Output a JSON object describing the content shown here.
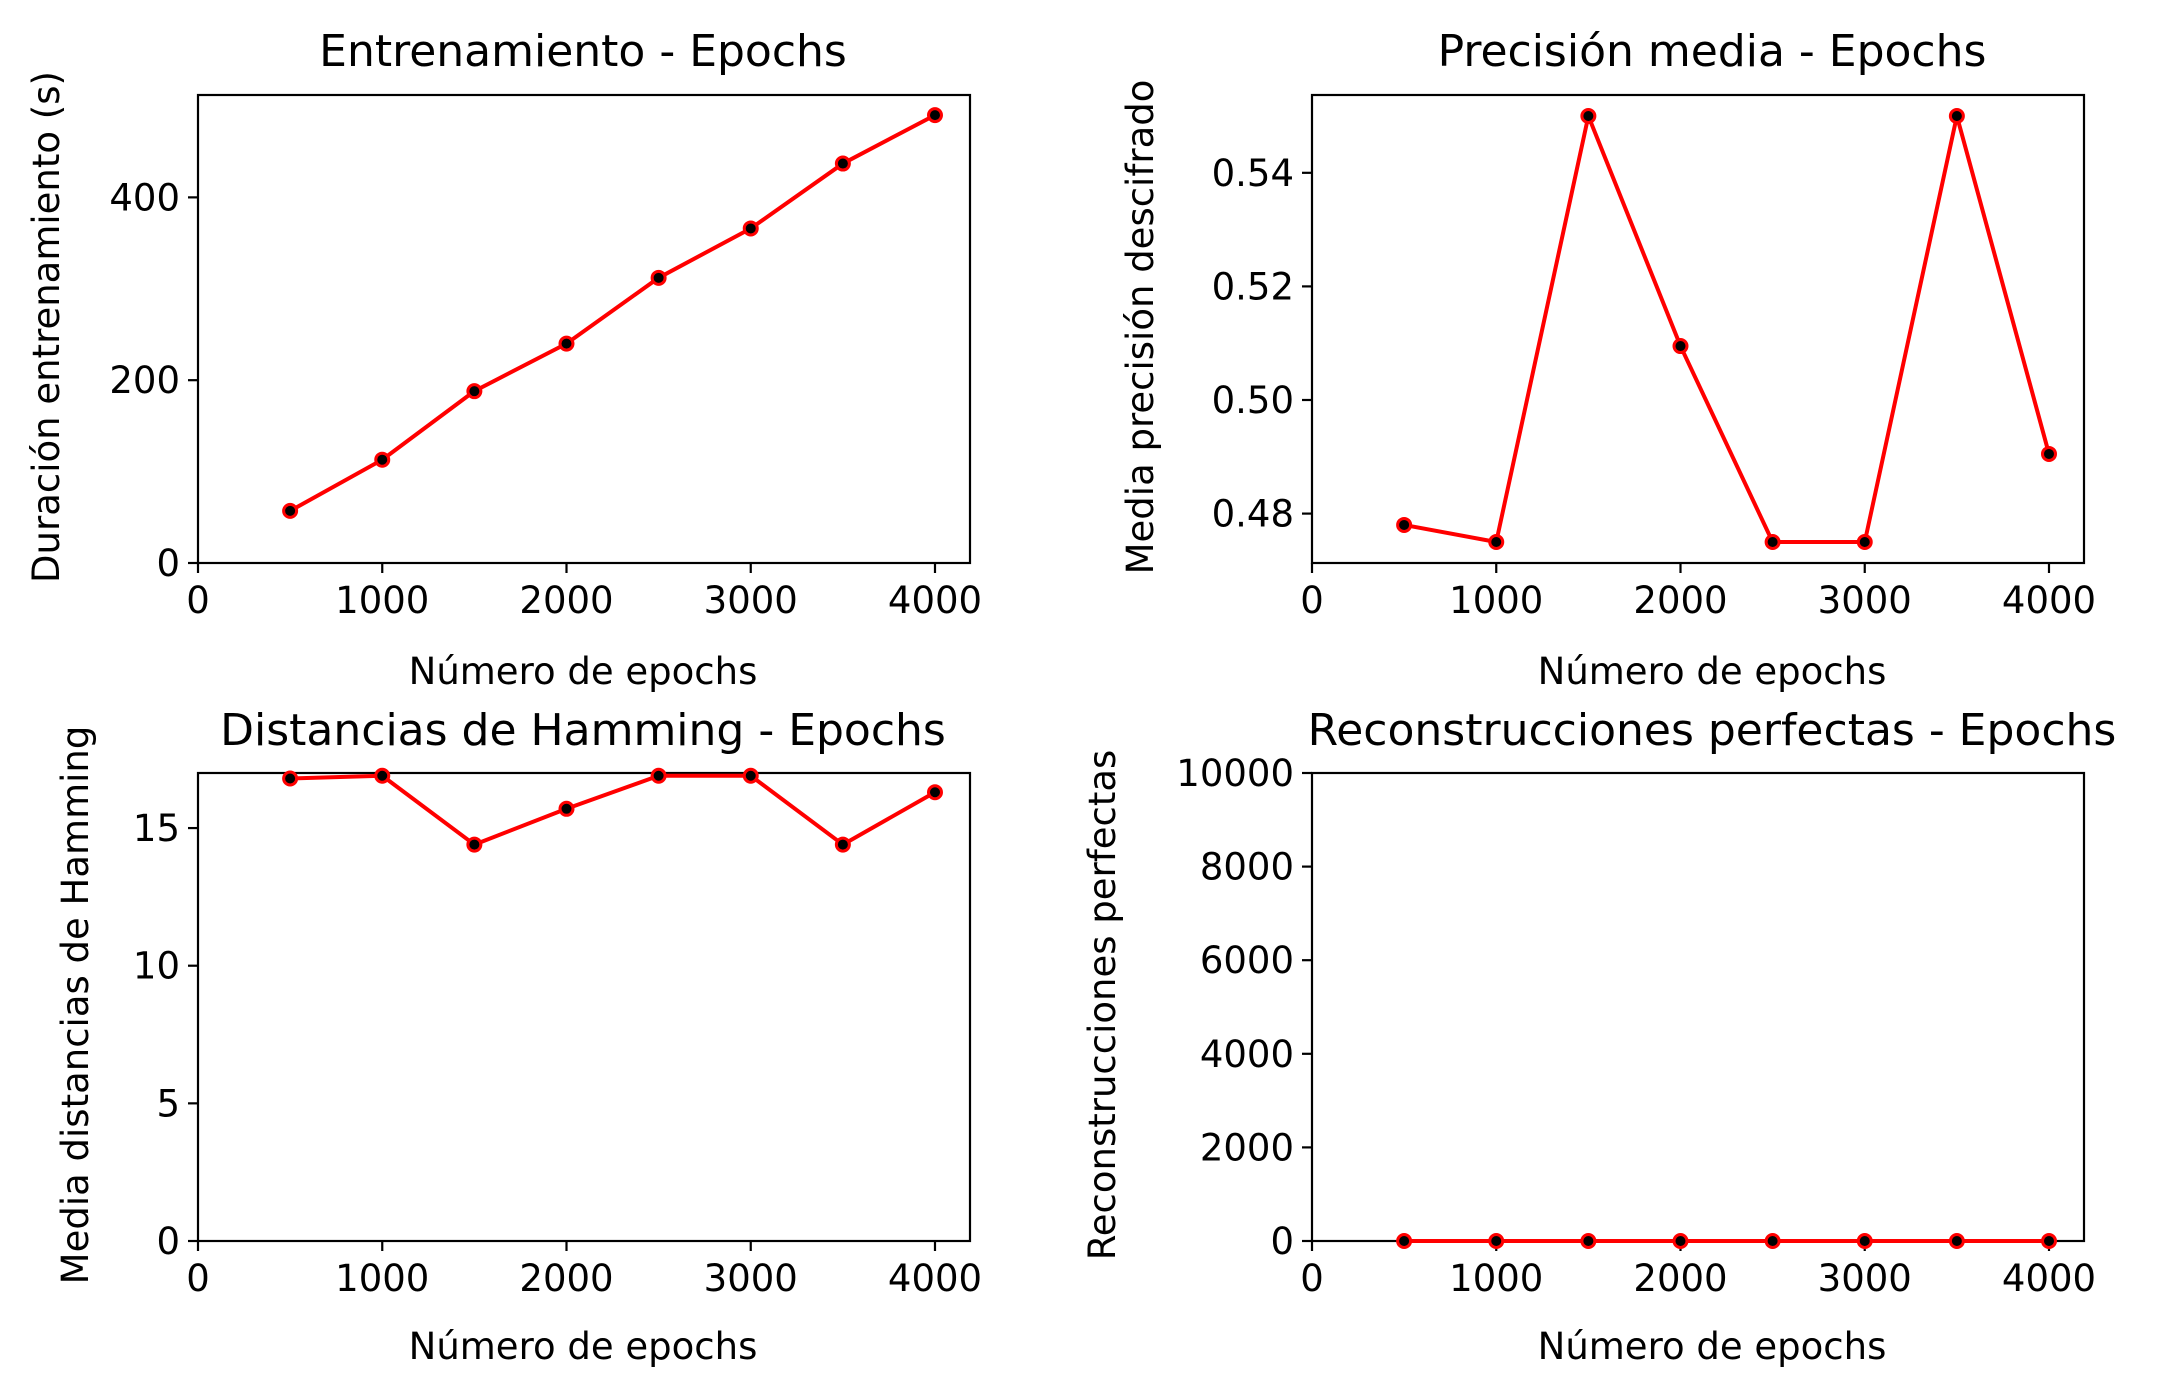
{
  "figure": {
    "background": "#ffffff",
    "line_color": "#ff0000",
    "marker_color": "#000000"
  },
  "chart_data": [
    {
      "type": "line",
      "title": "Entrenamiento - Epochs",
      "xlabel": "Número de epochs",
      "ylabel": "Duración entrenamiento (s)",
      "x": [
        500,
        1000,
        1500,
        2000,
        2500,
        3000,
        3500,
        4000
      ],
      "y": [
        57,
        113,
        188,
        240,
        312,
        366,
        437,
        490
      ],
      "xlim": [
        0,
        4190
      ],
      "ylim": [
        0,
        512
      ],
      "xticks": [
        0,
        1000,
        2000,
        3000,
        4000
      ],
      "xtick_labels": [
        "0",
        "1000",
        "2000",
        "3000",
        "4000"
      ],
      "yticks": [
        0,
        200,
        400
      ],
      "ytick_labels": [
        "0",
        "200",
        "400"
      ],
      "grid": false,
      "legend": "none"
    },
    {
      "type": "line",
      "title": "Precisión media - Epochs",
      "xlabel": "Número de epochs",
      "ylabel": "Media precisión descifrado",
      "x": [
        500,
        1000,
        1500,
        2000,
        2500,
        3000,
        3500,
        4000
      ],
      "y": [
        0.478,
        0.475,
        0.55,
        0.5095,
        0.475,
        0.475,
        0.55,
        0.4905
      ],
      "xlim": [
        0,
        4190
      ],
      "ylim": [
        0.4713,
        0.5537
      ],
      "xticks": [
        0,
        1000,
        2000,
        3000,
        4000
      ],
      "xtick_labels": [
        "0",
        "1000",
        "2000",
        "3000",
        "4000"
      ],
      "yticks": [
        0.48,
        0.5,
        0.52,
        0.54
      ],
      "ytick_labels": [
        "0.48",
        "0.50",
        "0.52",
        "0.54"
      ],
      "grid": false,
      "legend": "none"
    },
    {
      "type": "line",
      "title": "Distancias de Hamming - Epochs",
      "xlabel": "Número de epochs",
      "ylabel": "Media distancias de Hamming",
      "x": [
        500,
        1000,
        1500,
        2000,
        2500,
        3000,
        3500,
        4000
      ],
      "y": [
        16.8,
        16.9,
        14.4,
        15.7,
        16.9,
        16.9,
        14.4,
        16.3
      ],
      "xlim": [
        0,
        4190
      ],
      "ylim": [
        0,
        17
      ],
      "xticks": [
        0,
        1000,
        2000,
        3000,
        4000
      ],
      "xtick_labels": [
        "0",
        "1000",
        "2000",
        "3000",
        "4000"
      ],
      "yticks": [
        0,
        5,
        10,
        15
      ],
      "ytick_labels": [
        "0",
        "5",
        "10",
        "15"
      ],
      "grid": false,
      "legend": "none"
    },
    {
      "type": "line",
      "title": "Reconstrucciones perfectas - Epochs",
      "xlabel": "Número de epochs",
      "ylabel": "Reconstrucciones perfectas",
      "x": [
        500,
        1000,
        1500,
        2000,
        2500,
        3000,
        3500,
        4000
      ],
      "y": [
        0,
        0,
        0,
        0,
        0,
        0,
        0,
        0
      ],
      "xlim": [
        0,
        4190
      ],
      "ylim": [
        0,
        10000
      ],
      "xticks": [
        0,
        1000,
        2000,
        3000,
        4000
      ],
      "xtick_labels": [
        "0",
        "1000",
        "2000",
        "3000",
        "4000"
      ],
      "yticks": [
        0,
        2000,
        4000,
        6000,
        8000,
        10000
      ],
      "ytick_labels": [
        "0",
        "2000",
        "4000",
        "6000",
        "8000",
        "10000"
      ],
      "grid": false,
      "legend": "none"
    }
  ]
}
